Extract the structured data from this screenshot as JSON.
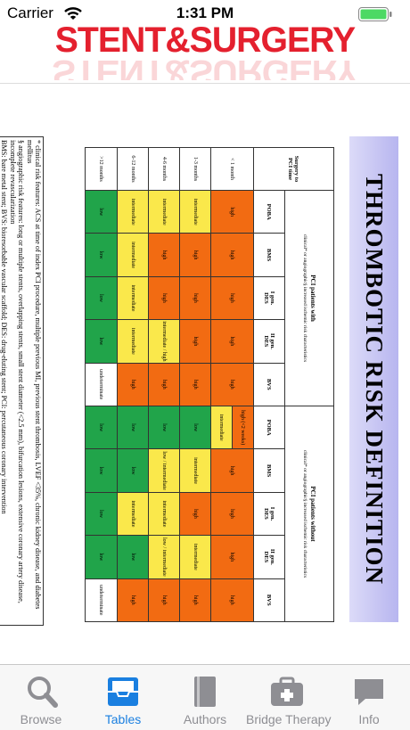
{
  "status": {
    "carrier": "Carrier",
    "time": "1:31 PM"
  },
  "header": {
    "logo": "STENT&SURGERY"
  },
  "table": {
    "title": "THROMBOTIC RISK DEFINITION",
    "corner_label": [
      "Surgery to",
      "PCI time"
    ],
    "groups": [
      {
        "title": "PCI patients with",
        "subtitle": "clinical* or angiographic§ increased ischemic risk characteristics",
        "columns": [
          [
            "POBA"
          ],
          [
            "BMS"
          ],
          [
            "I gen.",
            "DES"
          ],
          [
            "II gen.",
            "DES"
          ],
          [
            "BVS"
          ]
        ]
      },
      {
        "title": "PCI patients without",
        "subtitle": "clinical* or angiographic§ increased ischemic risk characteristics",
        "columns": [
          [
            "POBA"
          ],
          [
            "BMS"
          ],
          [
            "I gen.",
            "DES"
          ],
          [
            "II gen.",
            "DES"
          ],
          [
            "BVS"
          ]
        ]
      }
    ],
    "rows": [
      {
        "label": "< 1 month",
        "cells": [
          "high",
          "high",
          "high",
          "high",
          "high",
          [
            "high (<2 weeks)",
            "intermediate"
          ],
          "high",
          "high",
          "high",
          "high"
        ]
      },
      {
        "label": "1-3 months",
        "cells": [
          "intermediate",
          "high",
          "high",
          "high",
          "high",
          "low",
          "intermediate",
          "high",
          "intermediate",
          "high"
        ]
      },
      {
        "label": "4-6 months",
        "cells": [
          "intermediate",
          "high",
          "high",
          "intermediate / high",
          "high",
          "low",
          "low / intermediate",
          "intermediate",
          "low / intermediate",
          "high"
        ]
      },
      {
        "label": "6-12 months",
        "cells": [
          "intermediate",
          "intermediate",
          "intermediate",
          "intermediate",
          "high",
          "low",
          "low",
          "intermediate",
          "low",
          "high"
        ]
      },
      {
        "label": ">12 months",
        "cells": [
          "low",
          "low",
          "low",
          "low",
          "undeterminate",
          "low",
          "low",
          "low",
          "low",
          "undeterminate"
        ]
      }
    ],
    "footnotes": [
      "* clinical risk features: ACS at time of index PCI procedure, multiple previous MI, previous stent thrombosis, LVEF <35%, chronic kidney disease, and diabetes mellitus",
      "§ angiographic risk features: long or multiple stents, overlapping stents, small stent diameter (<2.5 mm), bifurcation lesions, extensive coronary artery disease, incomplete revascularization",
      "BMS: bare metal stent; BVS: bioresorbable vascular scaffold; DES: drug-eluting stent; PCI: percutaneous coronary intervention"
    ]
  },
  "tabs": [
    {
      "label": "Browse"
    },
    {
      "label": "Tables"
    },
    {
      "label": "Authors"
    },
    {
      "label": "Bridge Therapy"
    },
    {
      "label": "Info"
    }
  ],
  "active_tab": 1
}
